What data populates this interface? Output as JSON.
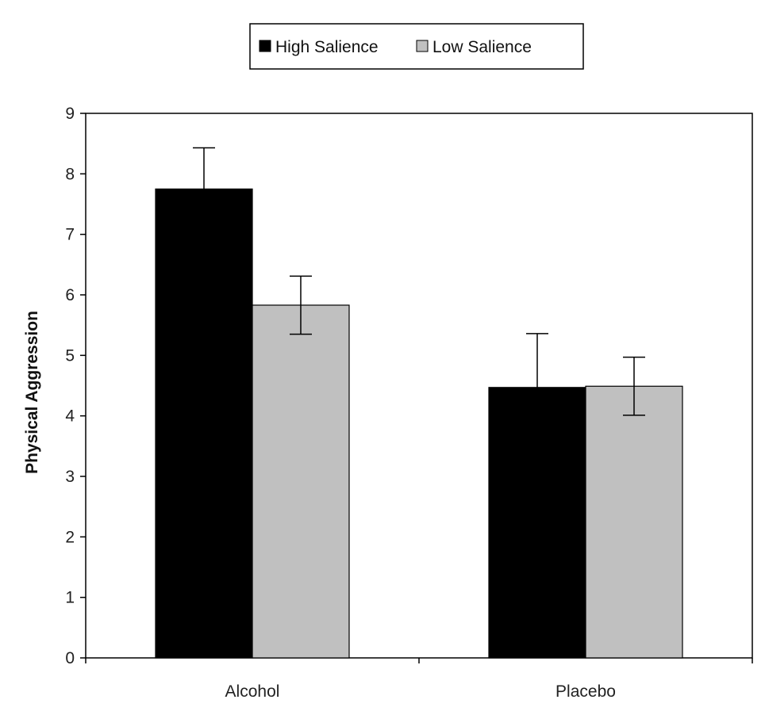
{
  "chart_data": {
    "type": "bar",
    "categories": [
      "Alcohol",
      "Placebo"
    ],
    "series": [
      {
        "name": "High Salience",
        "values": [
          7.75,
          4.47
        ],
        "errors": [
          0.68,
          0.89
        ],
        "color": "#000000"
      },
      {
        "name": "Low Salience",
        "values": [
          5.83,
          4.49
        ],
        "errors": [
          0.48,
          0.48
        ],
        "color": "#c0c0c0"
      }
    ],
    "title": "",
    "xlabel": "",
    "ylabel": "Physical Aggression",
    "ylim": [
      0,
      9
    ],
    "yticks": [
      "0",
      "1",
      "2",
      "3",
      "4",
      "5",
      "6",
      "7",
      "8",
      "9"
    ],
    "legend_position": "top-center",
    "grid": false
  }
}
